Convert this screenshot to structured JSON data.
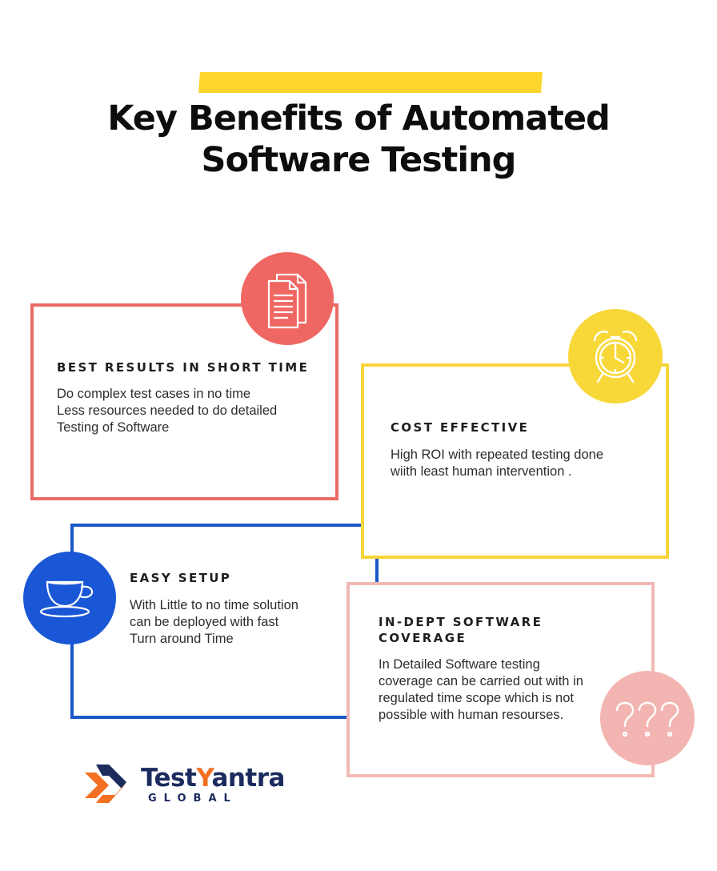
{
  "title": {
    "line1": "Key Benefits of Automated",
    "line2": "Software Testing"
  },
  "cards": [
    {
      "heading": "BEST RESULTS IN SHORT TIME",
      "lines": [
        "Do complex test cases in no time",
        "Less resources needed to do detailed",
        "Testing of Software"
      ],
      "icon": "document-icon",
      "color": "#ec6b66"
    },
    {
      "heading": "COST EFFECTIVE",
      "lines": [
        "High ROI  with repeated testing done",
        "wiith least human intervention ."
      ],
      "icon": "alarm-clock-icon",
      "color": "#f7d53a"
    },
    {
      "heading": "EASY SETUP",
      "lines": [
        "With Little to no time solution",
        "can be deployed  with fast",
        "Turn around Time"
      ],
      "icon": "tea-cup-icon",
      "color": "#1b57c9"
    },
    {
      "heading_lines": [
        "IN-DEPT SOFTWARE",
        "COVERAGE"
      ],
      "lines": [
        "In Detailed Software testing",
        "coverage can be carried out with in",
        "regulated time scope which is not",
        "possible with human resourses."
      ],
      "icon": "question-marks-icon",
      "color": "#f1b9b4"
    }
  ],
  "logo": {
    "name_part1": "Test",
    "name_part2": "Y",
    "name_part3": "antra",
    "subtitle": "GLOBAL",
    "colors": {
      "navy": "#1b2b5e",
      "orange": "#f36f21"
    }
  }
}
